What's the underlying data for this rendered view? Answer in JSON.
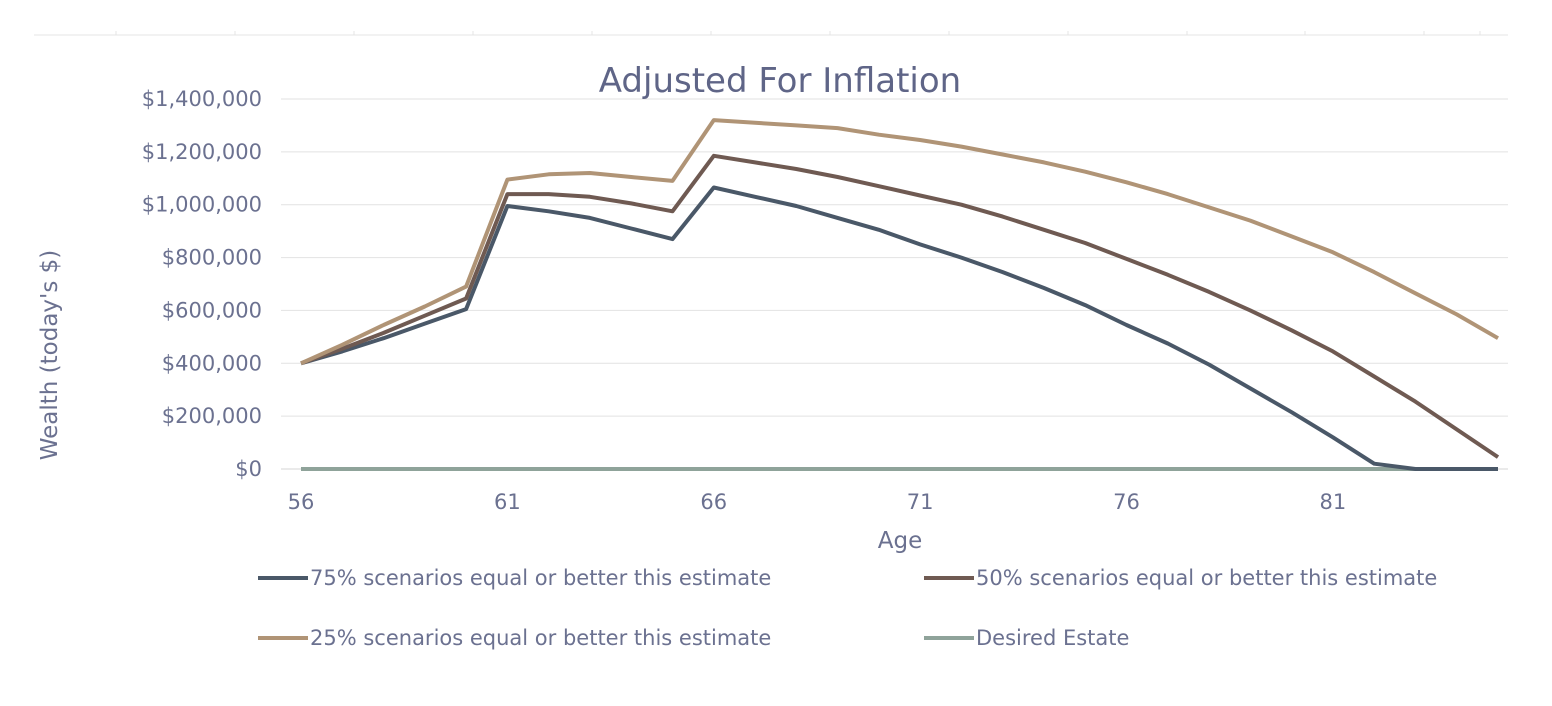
{
  "chart_data": {
    "type": "line",
    "title": "Adjusted For Inflation",
    "xlabel": "Age",
    "ylabel": "Wealth (today's $)",
    "xlim": [
      56,
      85
    ],
    "ylim": [
      0,
      1400000
    ],
    "x_ticks": [
      56,
      61,
      66,
      71,
      76,
      81
    ],
    "x_tick_labels": [
      "56",
      "61",
      "66",
      "71",
      "76",
      "81"
    ],
    "y_ticks": [
      0,
      200000,
      400000,
      600000,
      800000,
      1000000,
      1200000,
      1400000
    ],
    "y_tick_labels": [
      "$0",
      "$200,000",
      "$400,000",
      "$600,000",
      "$800,000",
      "$1,000,000",
      "$1,200,000",
      "$1,400,000"
    ],
    "grid": true,
    "legend_position": "bottom",
    "x": [
      56,
      57,
      58,
      59,
      60,
      61,
      62,
      63,
      64,
      65,
      66,
      67,
      68,
      69,
      70,
      71,
      72,
      73,
      74,
      75,
      76,
      77,
      78,
      79,
      80,
      81,
      82,
      83,
      84,
      85
    ],
    "series": [
      {
        "name": "75% scenarios equal or better this estimate",
        "color": "#4a5868",
        "values": [
          400000,
          445000,
          495000,
          550000,
          605000,
          995000,
          975000,
          950000,
          910000,
          870000,
          1065000,
          1030000,
          995000,
          950000,
          905000,
          850000,
          800000,
          745000,
          685000,
          620000,
          545000,
          475000,
          395000,
          305000,
          215000,
          120000,
          20000,
          0,
          0,
          0
        ]
      },
      {
        "name": "50% scenarios equal or better this estimate",
        "color": "#6f5a52",
        "values": [
          400000,
          455000,
          515000,
          580000,
          645000,
          1040000,
          1040000,
          1030000,
          1005000,
          975000,
          1185000,
          1160000,
          1135000,
          1105000,
          1070000,
          1035000,
          1000000,
          955000,
          905000,
          855000,
          795000,
          735000,
          670000,
          600000,
          525000,
          445000,
          350000,
          255000,
          150000,
          45000
        ]
      },
      {
        "name": "25% scenarios equal or better this estimate",
        "color": "#b09476",
        "values": [
          400000,
          470000,
          545000,
          615000,
          690000,
          1095000,
          1115000,
          1120000,
          1105000,
          1090000,
          1320000,
          1310000,
          1300000,
          1290000,
          1265000,
          1245000,
          1220000,
          1190000,
          1160000,
          1125000,
          1085000,
          1040000,
          990000,
          940000,
          880000,
          820000,
          745000,
          665000,
          585000,
          495000
        ]
      },
      {
        "name": "Desired Estate",
        "color": "#8fa39a",
        "values": [
          0,
          0,
          0,
          0,
          0,
          0,
          0,
          0,
          0,
          0,
          0,
          0,
          0,
          0,
          0,
          0,
          0,
          0,
          0,
          0,
          0,
          0,
          0,
          0,
          0,
          0,
          0,
          0,
          0,
          0
        ]
      }
    ]
  }
}
